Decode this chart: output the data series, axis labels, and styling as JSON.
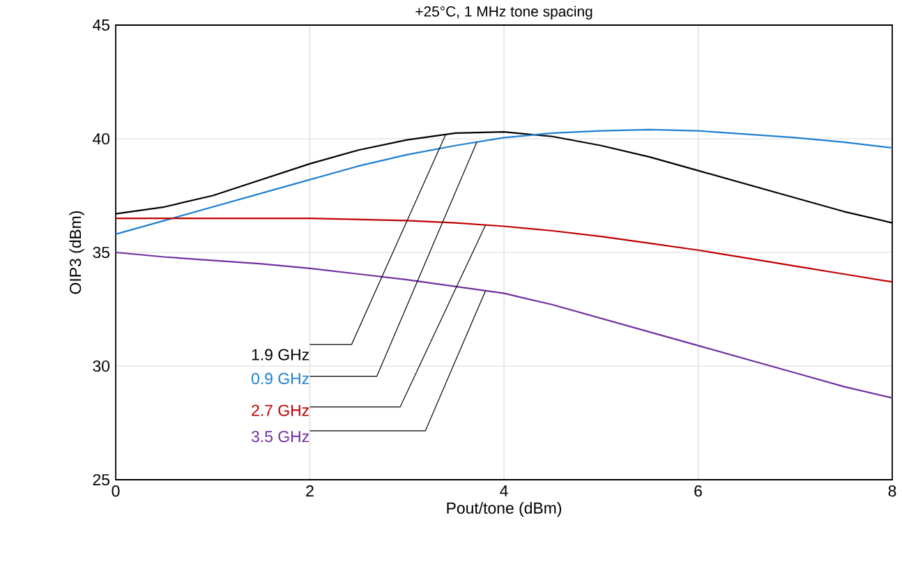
{
  "chart_data": {
    "type": "line",
    "title": "+25°C, 1 MHz tone spacing",
    "xlabel": "Pout/tone (dBm)",
    "ylabel": "OIP3 (dBm)",
    "xlim": [
      0,
      8
    ],
    "ylim": [
      25,
      45
    ],
    "xticks": [
      0,
      2,
      4,
      6,
      8
    ],
    "yticks": [
      25,
      30,
      35,
      40,
      45
    ],
    "grid": true,
    "legend": false,
    "line_style": "solid",
    "marker": "none",
    "x": [
      0,
      0.5,
      1,
      1.5,
      2,
      2.5,
      3,
      3.5,
      4,
      4.5,
      5,
      5.5,
      6,
      6.5,
      7,
      7.5,
      8
    ],
    "series": [
      {
        "name": "1.9 GHz",
        "color": "#000000",
        "values": [
          36.7,
          37.0,
          37.5,
          38.2,
          38.9,
          39.5,
          39.95,
          40.25,
          40.3,
          40.1,
          39.7,
          39.2,
          38.6,
          38.0,
          37.4,
          36.8,
          36.3
        ]
      },
      {
        "name": "0.9 GHz",
        "color": "#1f7fd0",
        "values": [
          35.8,
          36.4,
          37.0,
          37.6,
          38.2,
          38.8,
          39.3,
          39.7,
          40.05,
          40.25,
          40.35,
          40.4,
          40.35,
          40.2,
          40.05,
          39.85,
          39.6
        ]
      },
      {
        "name": "2.7 GHz",
        "color": "#c00000",
        "values": [
          36.5,
          36.5,
          36.5,
          36.5,
          36.5,
          36.45,
          36.4,
          36.3,
          36.15,
          35.95,
          35.7,
          35.4,
          35.1,
          34.75,
          34.4,
          34.05,
          33.7
        ]
      },
      {
        "name": "3.5 GHz",
        "color": "#7030a0",
        "values": [
          35.0,
          34.8,
          34.65,
          34.5,
          34.3,
          34.05,
          33.8,
          33.5,
          33.2,
          32.7,
          32.1,
          31.5,
          30.9,
          30.3,
          29.7,
          29.1,
          28.6
        ]
      }
    ]
  }
}
